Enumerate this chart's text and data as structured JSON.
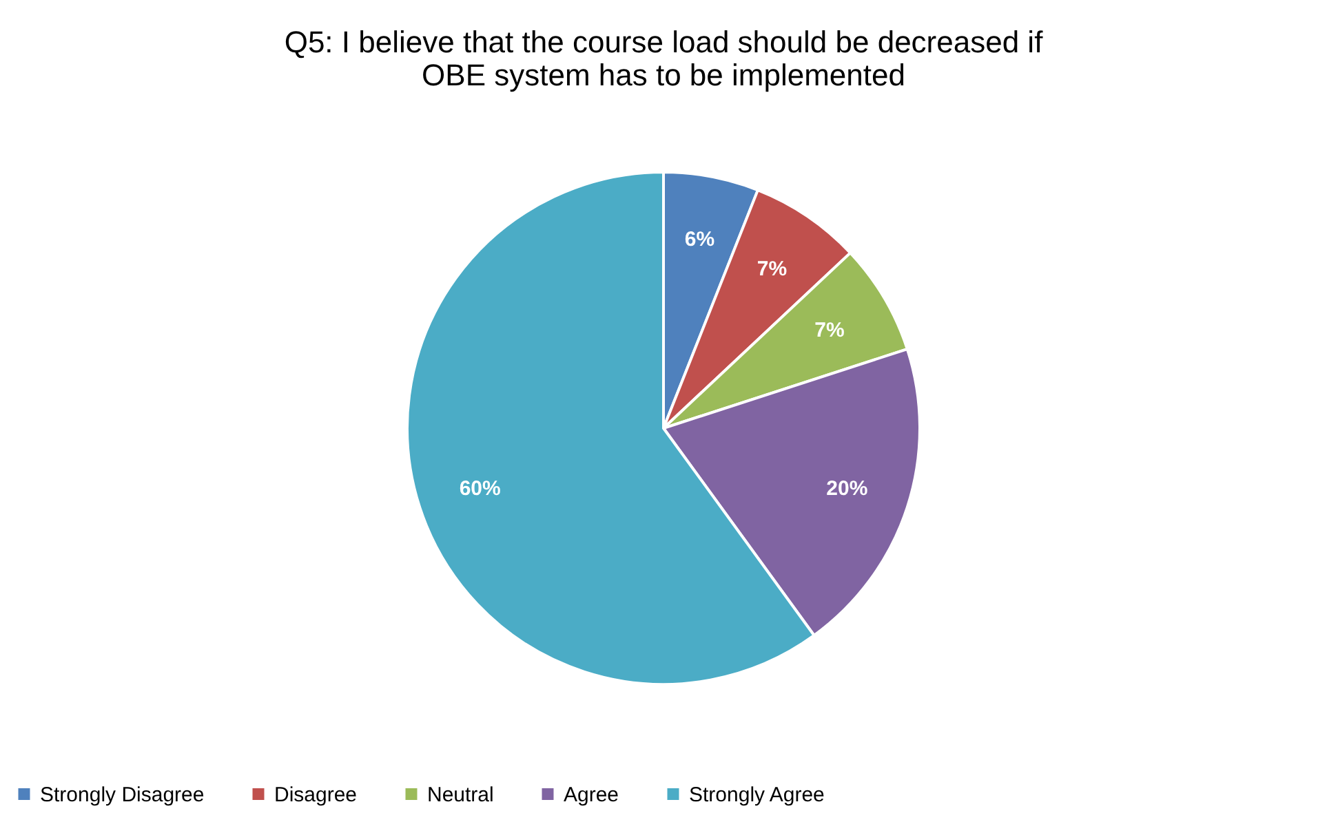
{
  "chart_data": {
    "type": "pie",
    "title": "Q5: I believe that the course load should be decreased if OBE system has to be implemented",
    "categories": [
      "Strongly Disagree",
      "Disagree",
      "Neutral",
      "Agree",
      "Strongly Agree"
    ],
    "values": [
      6,
      7,
      7,
      20,
      60
    ],
    "value_labels": [
      "6%",
      "7%",
      "7%",
      "20%",
      "60%"
    ],
    "colors": [
      "#4f81bd",
      "#c0504d",
      "#9bbb59",
      "#8064a2",
      "#4bacc6"
    ],
    "legend": "bottom"
  }
}
